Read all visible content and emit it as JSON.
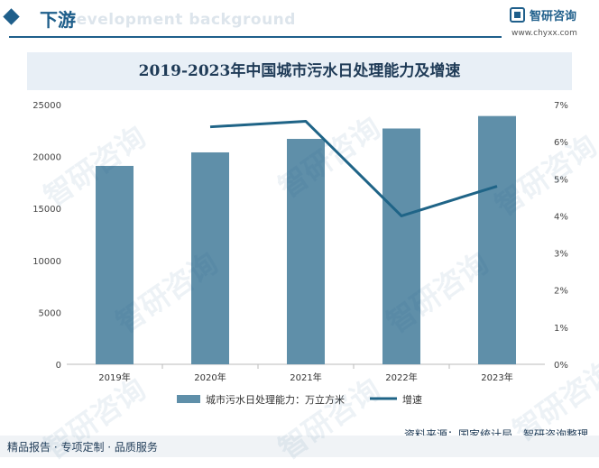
{
  "header": {
    "section_title": "下游",
    "bg_text": "Development background",
    "logo_name": "智研咨询",
    "logo_url": "www.chyxx.com"
  },
  "footer": {
    "left_text": "精品报告 · 专项定制 · 品质服务",
    "source_text": "资料来源：国家统计局、智研咨询整理"
  },
  "watermark": "智研咨询",
  "chart_data": {
    "type": "bar",
    "title": "2019-2023年中国城市污水日处理能力及增速",
    "categories": [
      "2019年",
      "2020年",
      "2021年",
      "2022年",
      "2023年"
    ],
    "series": [
      {
        "name": "城市污水日处理能力：万立方米",
        "type": "bar",
        "axis": "left",
        "values": [
          19100,
          20400,
          21700,
          22700,
          23900
        ],
        "color": "#5f8fa9"
      },
      {
        "name": "增速",
        "type": "line",
        "axis": "right",
        "values": [
          null,
          6.4,
          6.55,
          4.0,
          4.8
        ],
        "color": "#1f6487"
      }
    ],
    "left_axis": {
      "min": 0,
      "max": 25000,
      "ticks": [
        0,
        5000,
        10000,
        15000,
        20000,
        25000
      ]
    },
    "right_axis": {
      "min": 0,
      "max": 7,
      "ticks": [
        "0%",
        "1%",
        "2%",
        "3%",
        "4%",
        "5%",
        "6%",
        "7%"
      ]
    },
    "legend_position": "bottom"
  }
}
